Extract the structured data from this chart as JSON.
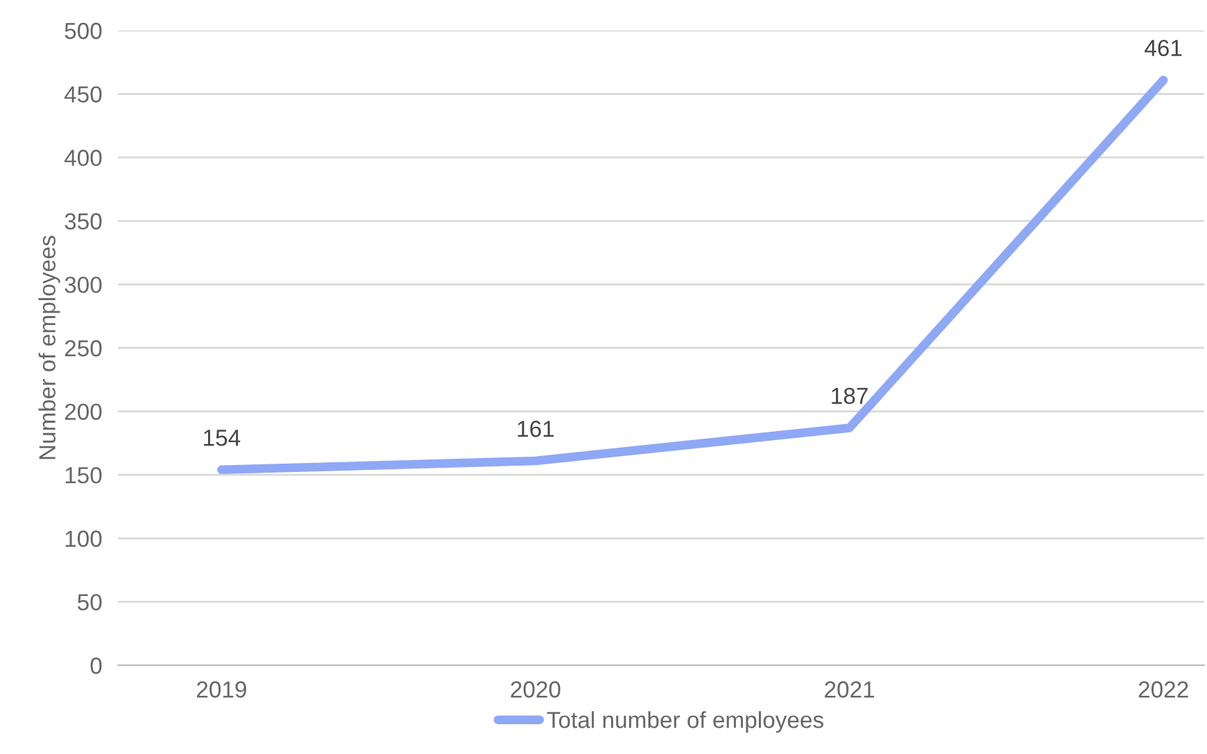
{
  "chart_data": {
    "type": "line",
    "ylabel": "Number of employees",
    "categories": [
      "2019",
      "2020",
      "2021",
      "2022"
    ],
    "series": [
      {
        "name": "Total number of employees",
        "color": "#8fa8f5",
        "values": [
          154,
          161,
          187,
          461
        ]
      }
    ],
    "ylim": [
      0,
      500
    ],
    "yticks": [
      0,
      50,
      100,
      150,
      200,
      250,
      300,
      350,
      400,
      450,
      500
    ],
    "grid": "y",
    "legend": "bottom",
    "data_labels": true,
    "marker": "none",
    "line_style": "solid"
  }
}
